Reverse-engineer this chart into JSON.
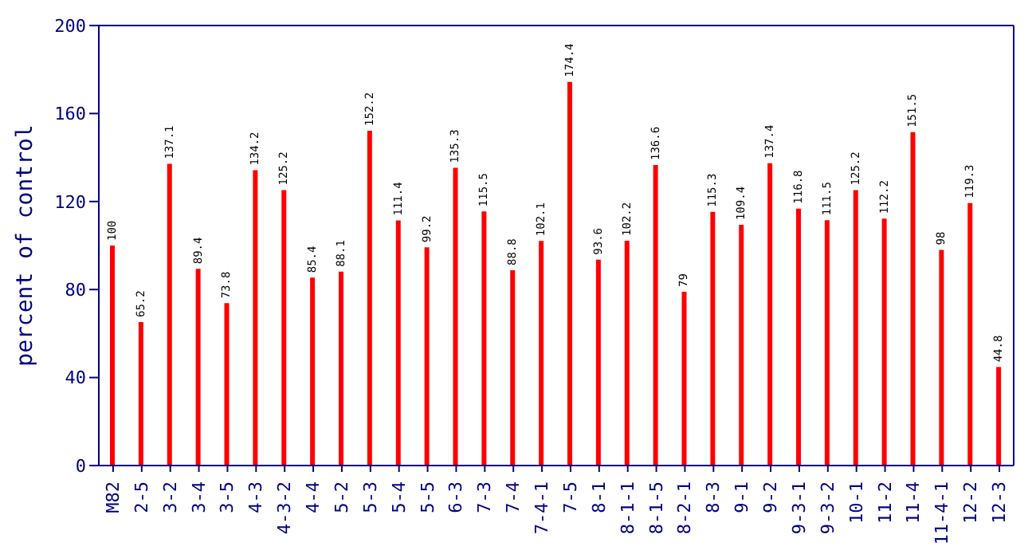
{
  "chart_data": {
    "type": "bar",
    "ylabel": "percent of control",
    "categories": [
      "M82",
      "2-5",
      "3-2",
      "3-4",
      "3-5",
      "4-3",
      "4-3-2",
      "4-4",
      "5-2",
      "5-3",
      "5-4",
      "5-5",
      "6-3",
      "7-3",
      "7-4",
      "7-4-1",
      "7-5",
      "8-1",
      "8-1-1",
      "8-1-5",
      "8-2-1",
      "8-3",
      "9-1",
      "9-2",
      "9-3-1",
      "9-3-2",
      "10-1",
      "11-2",
      "11-4",
      "11-4-1",
      "12-2",
      "12-3"
    ],
    "values": [
      100,
      65.2,
      137.1,
      89.4,
      73.8,
      134.2,
      125.2,
      85.4,
      88.1,
      152.2,
      111.4,
      99.2,
      135.3,
      115.5,
      88.8,
      102.1,
      174.4,
      93.6,
      102.2,
      136.6,
      79,
      115.3,
      109.4,
      137.4,
      116.8,
      111.5,
      125.2,
      112.2,
      151.5,
      98,
      119.3,
      44.8
    ],
    "color": "#ff0000",
    "ylim": [
      0,
      200
    ],
    "yticks": [
      0,
      40,
      80,
      120,
      160,
      200
    ],
    "grid": false,
    "data_labels": true
  }
}
